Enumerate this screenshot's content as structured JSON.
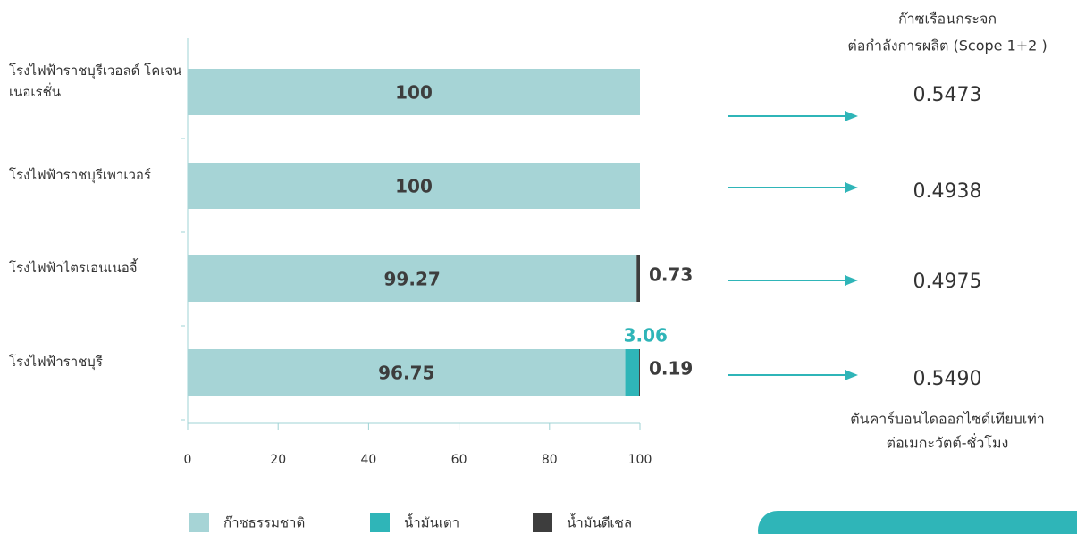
{
  "chart_data": {
    "type": "stacked_barh",
    "categories": [
      "โรงไฟฟ้าราชบุรีเวอลด์ โคเจนเนอเรชั่น",
      "โรงไฟฟ้าราชบุรีเพาเวอร์",
      "โรงไฟฟ้าไตรเอนเนอจี้",
      "โรงไฟฟ้าราชบุรี"
    ],
    "series": [
      {
        "name": "ก๊าซธรรมชาติ",
        "color": "#a6d4d6",
        "values": [
          100,
          100,
          99.27,
          96.75
        ]
      },
      {
        "name": "น้ำมันเตา",
        "color": "#2fb5b8",
        "values": [
          null,
          null,
          null,
          3.06
        ]
      },
      {
        "name": "น้ำมันดีเซล",
        "color": "#3d3d3d",
        "values": [
          null,
          null,
          0.73,
          0.19
        ]
      }
    ],
    "xlim": [
      0,
      100
    ],
    "xticks": [
      0,
      20,
      40,
      60,
      80,
      100
    ]
  },
  "intensity": {
    "title_lines": [
      "ก๊าซเรือนกระจก",
      "ต่อกำลังการผลิต (Scope 1+2 )"
    ],
    "values": [
      0.5473,
      0.4938,
      0.4975,
      0.549
    ],
    "value_labels": [
      "0.5473",
      "0.4938",
      "0.4975",
      "0.5490"
    ],
    "unit_lines": [
      "ตันคาร์บอนไดออกไซด์เทียบเท่า",
      "ต่อเมกะวัตต์-ชั่วโมง"
    ]
  }
}
